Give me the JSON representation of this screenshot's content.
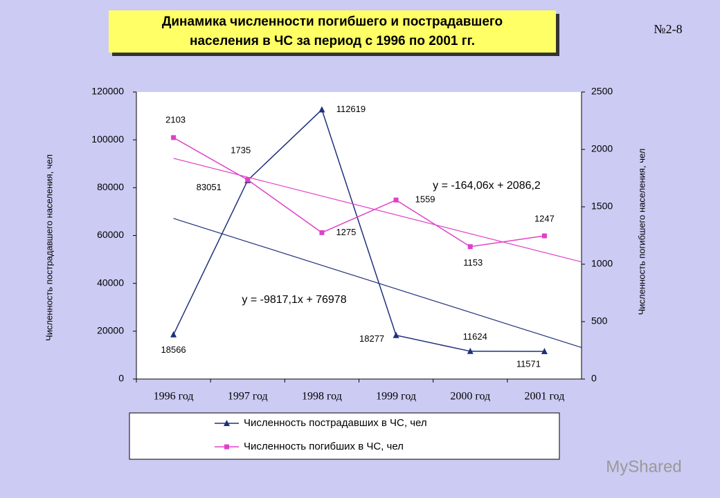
{
  "slide_number": "№2-8",
  "watermark": "MyShared",
  "chart_data": {
    "type": "line",
    "title": [
      "Динамика численности погибшего и пострадавшего",
      "населения в ЧС за период с 1996 по 2001 гг."
    ],
    "categories": [
      "1996 год",
      "1997 год",
      "1998 год",
      "1999 год",
      "2000 год",
      "2001 год"
    ],
    "y_label": "Численность пострадавшего населения, чел",
    "y2_label": "Численность погибшего населения, чел",
    "ylim": [
      0,
      120000
    ],
    "yticks": [
      0,
      20000,
      40000,
      60000,
      80000,
      100000,
      120000
    ],
    "y2lim": [
      0,
      2500
    ],
    "y2ticks": [
      0,
      500,
      1000,
      1500,
      2000,
      2500
    ],
    "series": [
      {
        "name": "Численность пострадавших в ЧС, чел",
        "color": "#1f2f7a",
        "marker": "triangle",
        "values": [
          18566,
          83051,
          112619,
          18277,
          11624,
          11571
        ],
        "trendline": {
          "slope": -9817.1,
          "intercept": 76978,
          "label": "y = -9817,1x + 76978"
        }
      },
      {
        "name": "Численность погибших в ЧС, чел",
        "color": "#e040c8",
        "marker": "square",
        "axis": "y2",
        "values": [
          2103,
          1735,
          1275,
          1559,
          1153,
          1247
        ],
        "trendline": {
          "slope": -164.06,
          "intercept": 2086.2,
          "label": "y = -164,06x + 2086,2"
        }
      }
    ]
  }
}
